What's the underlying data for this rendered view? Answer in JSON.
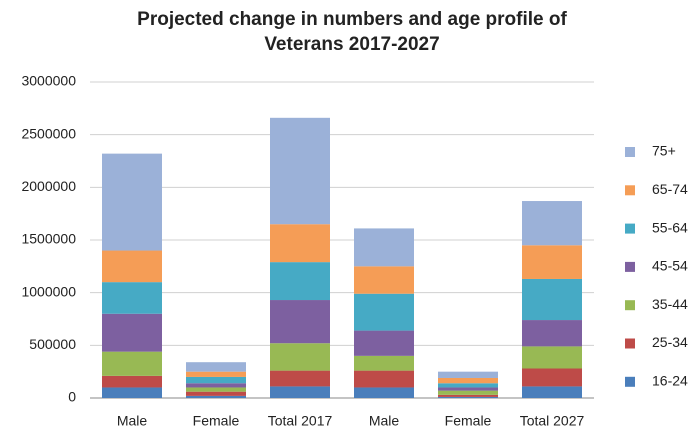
{
  "chart_data": {
    "type": "stacked_bar",
    "title": [
      "Projected  change in numbers and age profile of",
      "Veterans 2017-2027"
    ],
    "categories": [
      "Male",
      "Female",
      "Total 2017",
      "Male",
      "Female",
      "Total 2027"
    ],
    "series": [
      {
        "name": "16-24",
        "color": "#4a7ebb",
        "values": [
          100000,
          20000,
          110000,
          100000,
          10000,
          110000
        ]
      },
      {
        "name": "25-34",
        "color": "#be4b48",
        "values": [
          110000,
          40000,
          150000,
          160000,
          20000,
          170000
        ]
      },
      {
        "name": "35-44",
        "color": "#98b954",
        "values": [
          230000,
          40000,
          260000,
          140000,
          40000,
          210000
        ]
      },
      {
        "name": "45-54",
        "color": "#7d60a0",
        "values": [
          360000,
          40000,
          410000,
          240000,
          30000,
          250000
        ]
      },
      {
        "name": "55-64",
        "color": "#46aac5",
        "values": [
          300000,
          60000,
          360000,
          350000,
          40000,
          390000
        ]
      },
      {
        "name": "65-74",
        "color": "#f59d56",
        "values": [
          300000,
          50000,
          360000,
          260000,
          50000,
          320000
        ]
      },
      {
        "name": "75+",
        "color": "#9bb1d8",
        "values": [
          920000,
          90000,
          1010000,
          360000,
          60000,
          420000
        ]
      }
    ],
    "ylim": [
      0,
      3000000
    ],
    "yticks": [
      0,
      500000,
      1000000,
      1500000,
      2000000,
      2500000,
      3000000
    ],
    "grid": true,
    "legend": "right"
  }
}
